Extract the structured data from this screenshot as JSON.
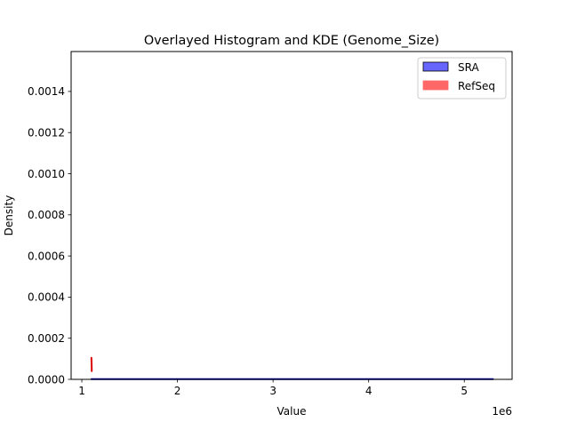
{
  "chart_data": {
    "type": "histogram+kde",
    "title": "Overlayed Histogram and KDE (Genome_Size)",
    "xlabel": "Value",
    "ylabel": "Density",
    "x_offset_label": "1e6",
    "xlim": [
      888000,
      5500000
    ],
    "ylim": [
      0,
      0.001594
    ],
    "x_ticks": [
      1,
      2,
      3,
      4,
      5
    ],
    "x_tick_labels": [
      "1",
      "2",
      "3",
      "4",
      "5"
    ],
    "y_ticks": [
      0.0,
      0.0002,
      0.0004,
      0.0006,
      0.0008,
      0.001,
      0.0012,
      0.0014
    ],
    "y_tick_labels": [
      "0.0000",
      "0.0002",
      "0.0004",
      "0.0006",
      "0.0008",
      "0.0010",
      "0.0012",
      "0.0014"
    ],
    "grid": false,
    "legend_position": "upper right",
    "series": [
      {
        "name": "SRA",
        "color": "#6666ff",
        "edge_color": "#000000",
        "kde_color": "#0000aa",
        "kde": {
          "x": [
            1100000,
            5300000
          ],
          "y": [
            1e-06,
            1e-06
          ]
        }
      },
      {
        "name": "RefSeq",
        "color": "#ff6666",
        "kde_color": "#dd0000",
        "kde": {
          "x": [
            1100000,
            1102000,
            1104000
          ],
          "y": [
            0.000105,
            8e-05,
            4e-05
          ]
        }
      }
    ]
  },
  "legend": {
    "items": [
      {
        "label": "SRA",
        "color": "#6666ff",
        "edge": "#000000"
      },
      {
        "label": "RefSeq",
        "color": "#ff6666",
        "edge": "#ff6666"
      }
    ]
  }
}
